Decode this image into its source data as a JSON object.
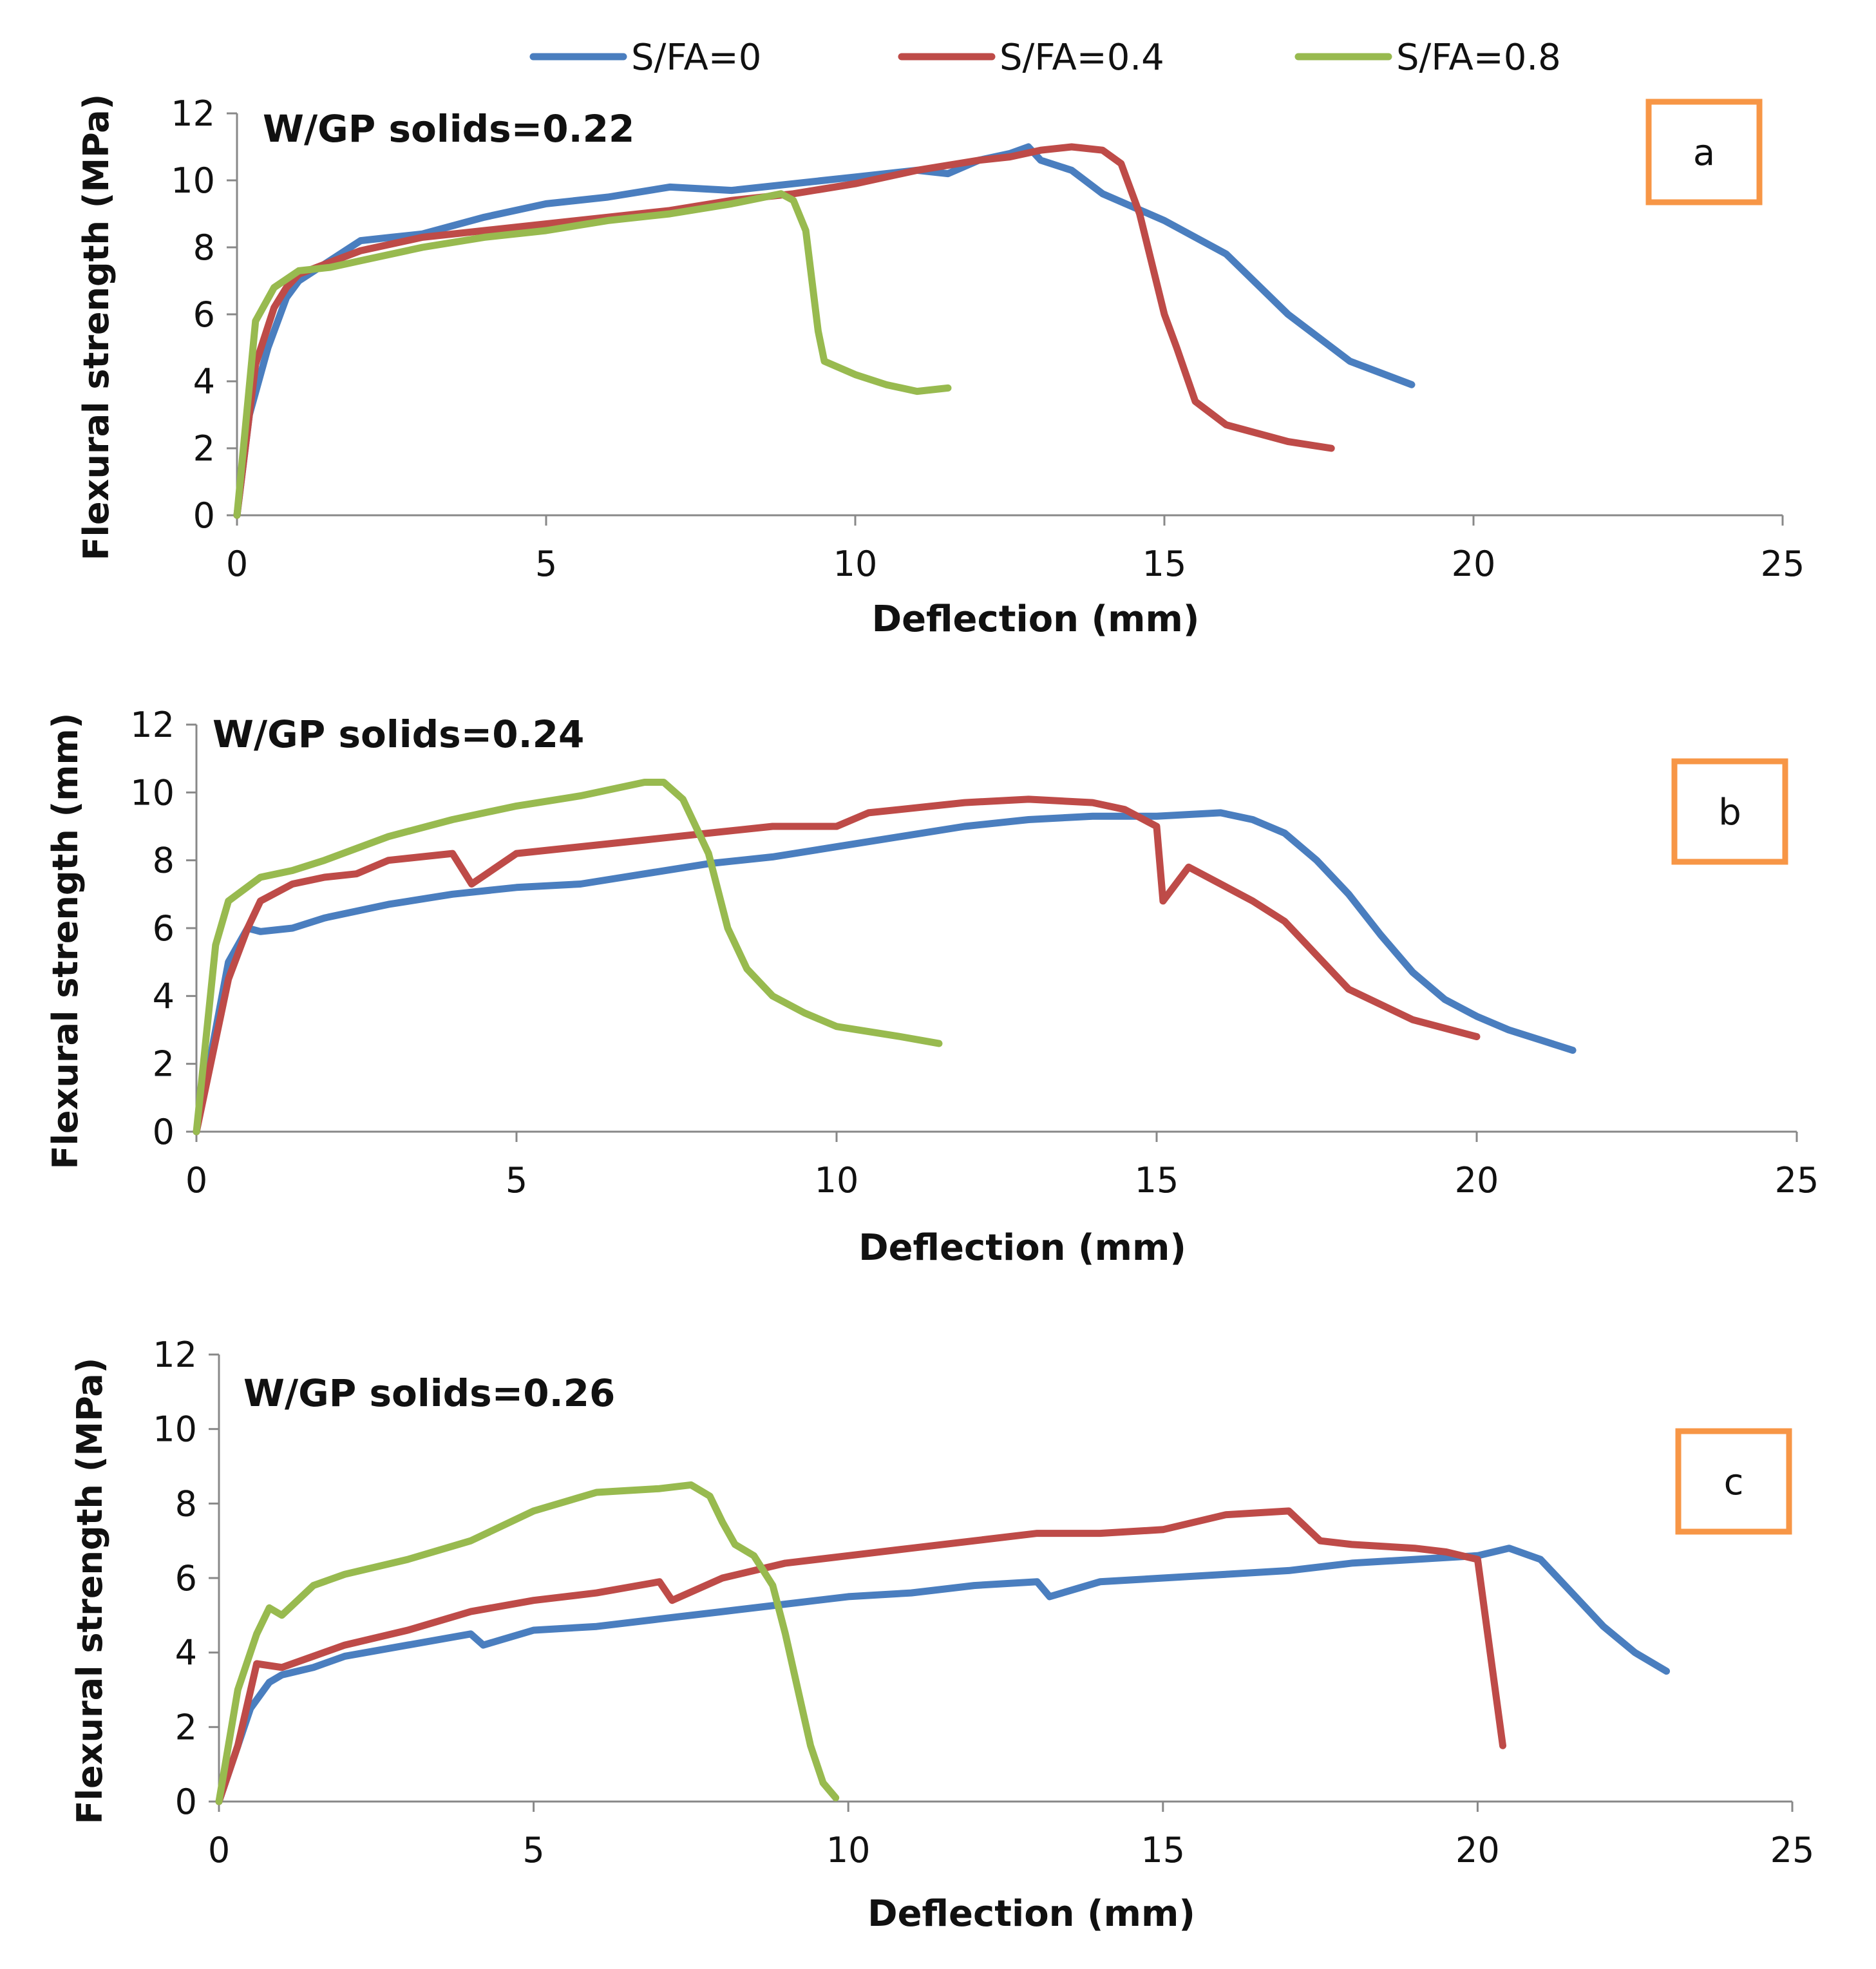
{
  "legend": [
    {
      "name": "S/FA=0",
      "color": "#4a7ebf"
    },
    {
      "name": "S/FA=0.4",
      "color": "#be4b48"
    },
    {
      "name": "S/FA=0.8",
      "color": "#98ba4f"
    }
  ],
  "label_box_color": "#f79646",
  "chart_data": [
    {
      "type": "line",
      "panel_label": "a",
      "annotation": "W/GP solids=0.22",
      "xlabel": "Deflection (mm)",
      "ylabel": "Flexural strength (MPa)",
      "xlim": [
        0,
        25
      ],
      "ylim": [
        0,
        12
      ],
      "xticks": [
        "0",
        "5",
        "10",
        "15",
        "20",
        "25"
      ],
      "yticks": [
        "0",
        "2",
        "4",
        "6",
        "8",
        "10",
        "12"
      ],
      "series": [
        {
          "name": "S/FA=0",
          "x": [
            0,
            0.2,
            0.5,
            0.8,
            1.0,
            1.5,
            2.0,
            2.5,
            3.0,
            4.0,
            5.0,
            6.0,
            7.0,
            8.0,
            9.0,
            10.0,
            11.0,
            11.5,
            12.0,
            12.5,
            12.8,
            13.0,
            13.5,
            14.0,
            15.0,
            16.0,
            17.0,
            18.0,
            19.0
          ],
          "y": [
            0,
            3.0,
            5.0,
            6.5,
            7.0,
            7.6,
            8.2,
            8.3,
            8.4,
            8.9,
            9.3,
            9.5,
            9.8,
            9.7,
            9.9,
            10.1,
            10.3,
            10.2,
            10.6,
            10.8,
            11.0,
            10.6,
            10.3,
            9.6,
            8.8,
            7.8,
            6.0,
            4.6,
            3.9
          ]
        },
        {
          "name": "S/FA=0.4",
          "x": [
            0,
            0.3,
            0.6,
            0.8,
            1.0,
            2.0,
            3.0,
            4.0,
            5.0,
            6.0,
            7.0,
            8.0,
            9.0,
            10.0,
            11.0,
            12.0,
            12.5,
            13.0,
            13.5,
            14.0,
            14.3,
            14.6,
            15.0,
            15.2,
            15.5,
            16.0,
            17.0,
            17.7
          ],
          "y": [
            0,
            4.5,
            6.2,
            6.8,
            7.2,
            7.9,
            8.3,
            8.5,
            8.7,
            8.9,
            9.1,
            9.4,
            9.6,
            9.9,
            10.3,
            10.6,
            10.7,
            10.9,
            11.0,
            10.9,
            10.5,
            9.0,
            6.0,
            5.0,
            3.4,
            2.7,
            2.2,
            2.0
          ]
        },
        {
          "name": "S/FA=0.8",
          "x": [
            0,
            0.3,
            0.6,
            1.0,
            1.5,
            2.0,
            3.0,
            4.0,
            5.0,
            6.0,
            7.0,
            8.0,
            8.8,
            9.0,
            9.2,
            9.3,
            9.4,
            9.5,
            10.0,
            10.5,
            11.0,
            11.5
          ],
          "y": [
            0,
            5.8,
            6.8,
            7.3,
            7.4,
            7.6,
            8.0,
            8.3,
            8.5,
            8.8,
            9.0,
            9.3,
            9.6,
            9.4,
            8.5,
            7.0,
            5.5,
            4.6,
            4.2,
            3.9,
            3.7,
            3.8
          ]
        }
      ]
    },
    {
      "type": "line",
      "panel_label": "b",
      "annotation": "W/GP solids=0.24",
      "xlabel": "Deflection (mm)",
      "ylabel": "Flexural strength (mm)",
      "xlim": [
        0,
        25
      ],
      "ylim": [
        0,
        12
      ],
      "xticks": [
        "0",
        "5",
        "10",
        "15",
        "20",
        "25"
      ],
      "yticks": [
        "0",
        "2",
        "4",
        "6",
        "8",
        "10",
        "12"
      ],
      "series": [
        {
          "name": "S/FA=0",
          "x": [
            0,
            0.5,
            0.8,
            1.0,
            1.5,
            2.0,
            3.0,
            4.0,
            5.0,
            6.0,
            7.0,
            8.0,
            9.0,
            10.0,
            11.0,
            12.0,
            13.0,
            14.0,
            15.0,
            16.0,
            16.5,
            17.0,
            17.5,
            18.0,
            18.5,
            19.0,
            19.5,
            20.0,
            20.5,
            21.0,
            21.5
          ],
          "y": [
            0,
            5.0,
            6.0,
            5.9,
            6.0,
            6.3,
            6.7,
            7.0,
            7.2,
            7.3,
            7.6,
            7.9,
            8.1,
            8.4,
            8.7,
            9.0,
            9.2,
            9.3,
            9.3,
            9.4,
            9.2,
            8.8,
            8.0,
            7.0,
            5.8,
            4.7,
            3.9,
            3.4,
            3.0,
            2.7,
            2.4
          ]
        },
        {
          "name": "S/FA=0.4",
          "x": [
            0,
            0.5,
            0.8,
            1.0,
            1.5,
            2.0,
            2.5,
            3.0,
            4.0,
            4.3,
            5.0,
            6.0,
            7.0,
            8.0,
            9.0,
            10.0,
            10.5,
            11.0,
            12.0,
            13.0,
            14.0,
            14.5,
            15.0,
            15.1,
            15.5,
            16.0,
            16.5,
            17.0,
            17.5,
            18.0,
            19.0,
            20.0
          ],
          "y": [
            0,
            4.5,
            6.0,
            6.8,
            7.3,
            7.5,
            7.6,
            8.0,
            8.2,
            7.3,
            8.2,
            8.4,
            8.6,
            8.8,
            9.0,
            9.0,
            9.4,
            9.5,
            9.7,
            9.8,
            9.7,
            9.5,
            9.0,
            6.8,
            7.8,
            7.3,
            6.8,
            6.2,
            5.2,
            4.2,
            3.3,
            2.8
          ]
        },
        {
          "name": "S/FA=0.8",
          "x": [
            0,
            0.3,
            0.5,
            1.0,
            1.5,
            2.0,
            3.0,
            4.0,
            5.0,
            6.0,
            7.0,
            7.3,
            7.6,
            8.0,
            8.3,
            8.6,
            9.0,
            9.5,
            10.0,
            11.0,
            11.6
          ],
          "y": [
            0,
            5.5,
            6.8,
            7.5,
            7.7,
            8.0,
            8.7,
            9.2,
            9.6,
            9.9,
            10.3,
            10.3,
            9.8,
            8.2,
            6.0,
            4.8,
            4.0,
            3.5,
            3.1,
            2.8,
            2.6
          ]
        }
      ]
    },
    {
      "type": "line",
      "panel_label": "c",
      "annotation": "W/GP solids=0.26",
      "xlabel": "Deflection (mm)",
      "ylabel": "Flexural strength (MPa)",
      "xlim": [
        0,
        25
      ],
      "ylim": [
        0,
        12
      ],
      "xticks": [
        "0",
        "5",
        "10",
        "15",
        "20",
        "25"
      ],
      "yticks": [
        "0",
        "2",
        "4",
        "6",
        "8",
        "10",
        "12"
      ],
      "series": [
        {
          "name": "S/FA=0",
          "x": [
            0,
            0.5,
            0.8,
            1.0,
            1.5,
            2.0,
            3.0,
            4.0,
            4.2,
            5.0,
            6.0,
            7.0,
            8.0,
            9.0,
            10.0,
            11.0,
            12.0,
            13.0,
            13.2,
            14.0,
            15.0,
            16.0,
            17.0,
            18.0,
            19.0,
            20.0,
            20.5,
            21.0,
            21.5,
            22.0,
            22.5,
            23.0
          ],
          "y": [
            0,
            2.5,
            3.2,
            3.4,
            3.6,
            3.9,
            4.2,
            4.5,
            4.2,
            4.6,
            4.7,
            4.9,
            5.1,
            5.3,
            5.5,
            5.6,
            5.8,
            5.9,
            5.5,
            5.9,
            6.0,
            6.1,
            6.2,
            6.4,
            6.5,
            6.6,
            6.8,
            6.5,
            5.6,
            4.7,
            4.0,
            3.5
          ]
        },
        {
          "name": "S/FA=0.4",
          "x": [
            0,
            0.3,
            0.6,
            1.0,
            1.5,
            2.0,
            3.0,
            4.0,
            5.0,
            6.0,
            7.0,
            7.2,
            8.0,
            9.0,
            10.0,
            11.0,
            12.0,
            13.0,
            14.0,
            15.0,
            16.0,
            17.0,
            17.5,
            18.0,
            19.0,
            19.5,
            20.0,
            20.2,
            20.4
          ],
          "y": [
            0,
            1.5,
            3.7,
            3.6,
            3.9,
            4.2,
            4.6,
            5.1,
            5.4,
            5.6,
            5.9,
            5.4,
            6.0,
            6.4,
            6.6,
            6.8,
            7.0,
            7.2,
            7.2,
            7.3,
            7.7,
            7.8,
            7.0,
            6.9,
            6.8,
            6.7,
            6.5,
            4.0,
            1.5
          ]
        },
        {
          "name": "S/FA=0.8",
          "x": [
            0,
            0.3,
            0.6,
            0.8,
            1.0,
            1.5,
            2.0,
            3.0,
            4.0,
            5.0,
            6.0,
            7.0,
            7.5,
            7.8,
            8.0,
            8.2,
            8.5,
            8.8,
            9.0,
            9.2,
            9.4,
            9.6,
            9.8
          ],
          "y": [
            0,
            3.0,
            4.5,
            5.2,
            5.0,
            5.8,
            6.1,
            6.5,
            7.0,
            7.8,
            8.3,
            8.4,
            8.5,
            8.2,
            7.5,
            6.9,
            6.6,
            5.8,
            4.5,
            3.0,
            1.5,
            0.5,
            0.1
          ]
        }
      ]
    }
  ]
}
